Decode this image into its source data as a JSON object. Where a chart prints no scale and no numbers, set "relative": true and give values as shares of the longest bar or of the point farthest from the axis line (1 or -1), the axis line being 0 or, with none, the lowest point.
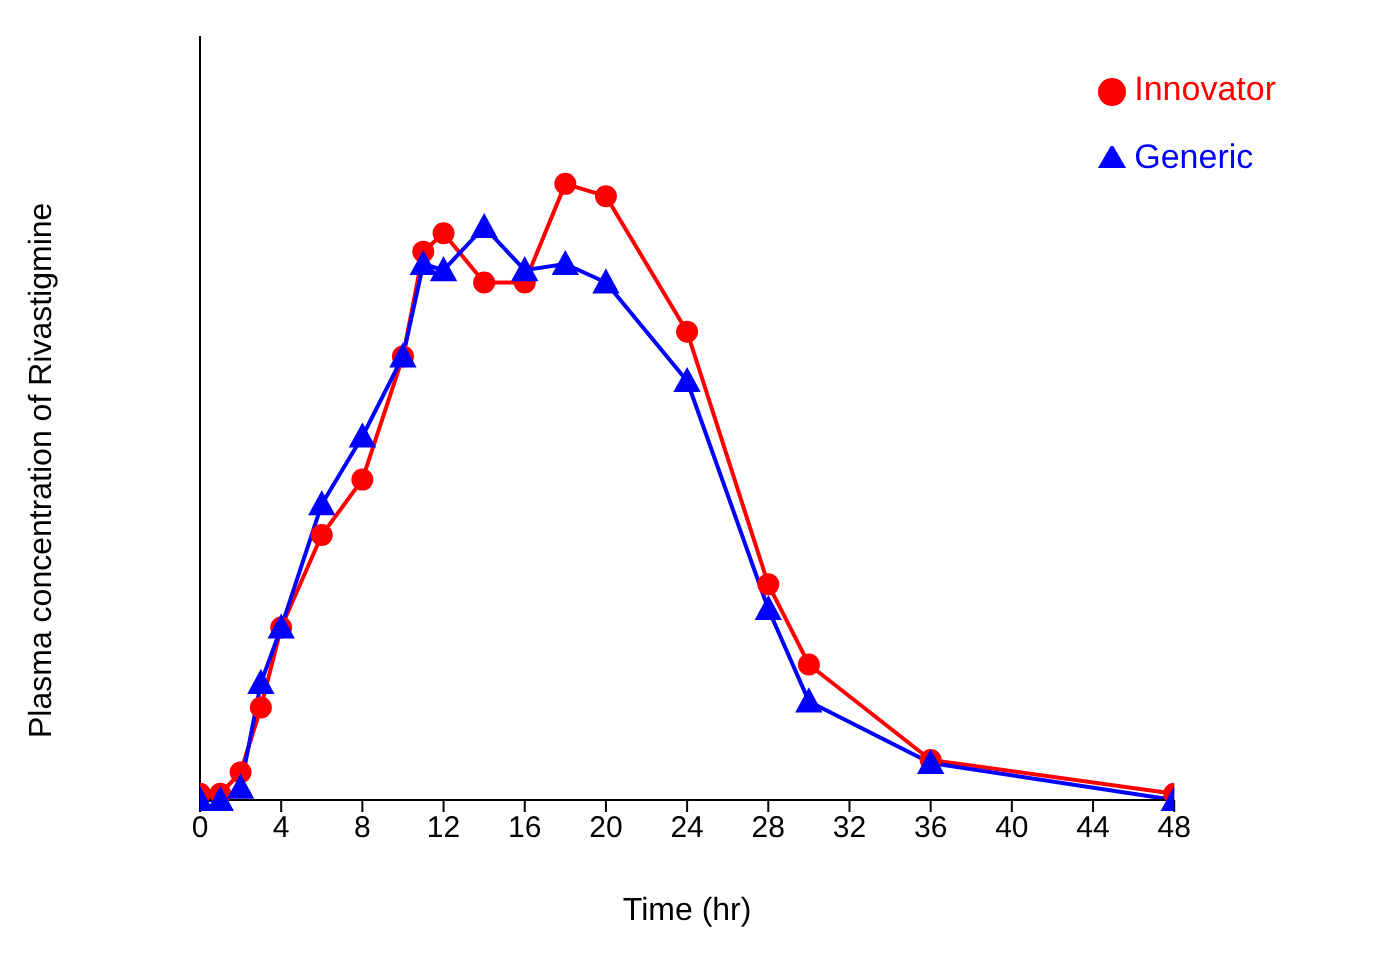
{
  "chart_data": {
    "type": "line",
    "xlabel": "Time (hr)",
    "ylabel": "Plasma concentration of Rivastigmine",
    "relative": true,
    "x": [
      0,
      1,
      2,
      3,
      4,
      6,
      8,
      10,
      11,
      12,
      14,
      16,
      18,
      20,
      24,
      28,
      30,
      36,
      48
    ],
    "xlim": [
      0,
      48
    ],
    "xticks": [
      0,
      4,
      8,
      12,
      16,
      20,
      24,
      28,
      32,
      36,
      40,
      44,
      48
    ],
    "grid": false,
    "legend": "top right",
    "series": [
      {
        "name": "Innovator",
        "color": "#ff0000",
        "marker": "circle",
        "values": [
          0.01,
          0.01,
          0.045,
          0.15,
          0.28,
          0.43,
          0.52,
          0.72,
          0.89,
          0.92,
          0.84,
          0.84,
          1,
          0.98,
          0.76,
          0.35,
          0.22,
          0.065,
          0.01
        ]
      },
      {
        "name": "Generic",
        "color": "#0000ff",
        "marker": "triangle",
        "values": [
          0,
          0,
          0.02,
          0.19,
          0.28,
          0.48,
          0.59,
          0.72,
          0.87,
          0.86,
          0.93,
          0.86,
          0.87,
          0.84,
          0.68,
          0.31,
          0.16,
          0.06,
          0
        ]
      }
    ]
  }
}
